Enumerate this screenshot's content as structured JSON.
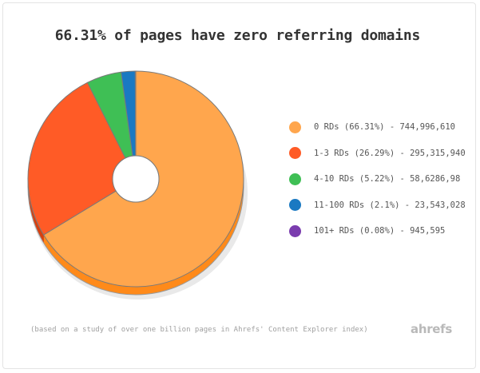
{
  "chart_data": {
    "type": "pie",
    "variant": "3d-donut",
    "title": "66.31% of pages have zero referring domains",
    "slices": [
      {
        "label": "0 RDs (66.31%) - 744,996,610",
        "percent": 66.31,
        "value": 744996610,
        "color": "#ffa64d",
        "side_color": "#ff8a1a"
      },
      {
        "label": "1-3 RDs (26.29%) - 295,315,940",
        "percent": 26.29,
        "value": 295315940,
        "color": "#ff5b26",
        "side_color": "#d9400f"
      },
      {
        "label": "4-10 RDs (5.22%) - 58,6286,98",
        "percent": 5.22,
        "value": 58628698,
        "color": "#3fbf55",
        "side_color": "#2e9a40"
      },
      {
        "label": "11-100 RDs (2.1%) - 23,543,028",
        "percent": 2.1,
        "value": 23543028,
        "color": "#1a79c2",
        "side_color": "#125c96"
      },
      {
        "label": "101+ RDs (0.08%) - 945,595",
        "percent": 0.08,
        "value": 945595,
        "color": "#7a3cae",
        "side_color": "#5d2c86"
      }
    ],
    "legend_position": "right",
    "footnote": "(based on a study of over one billion pages in Ahrefs' Content Explorer index)"
  },
  "brand": "ahrefs"
}
